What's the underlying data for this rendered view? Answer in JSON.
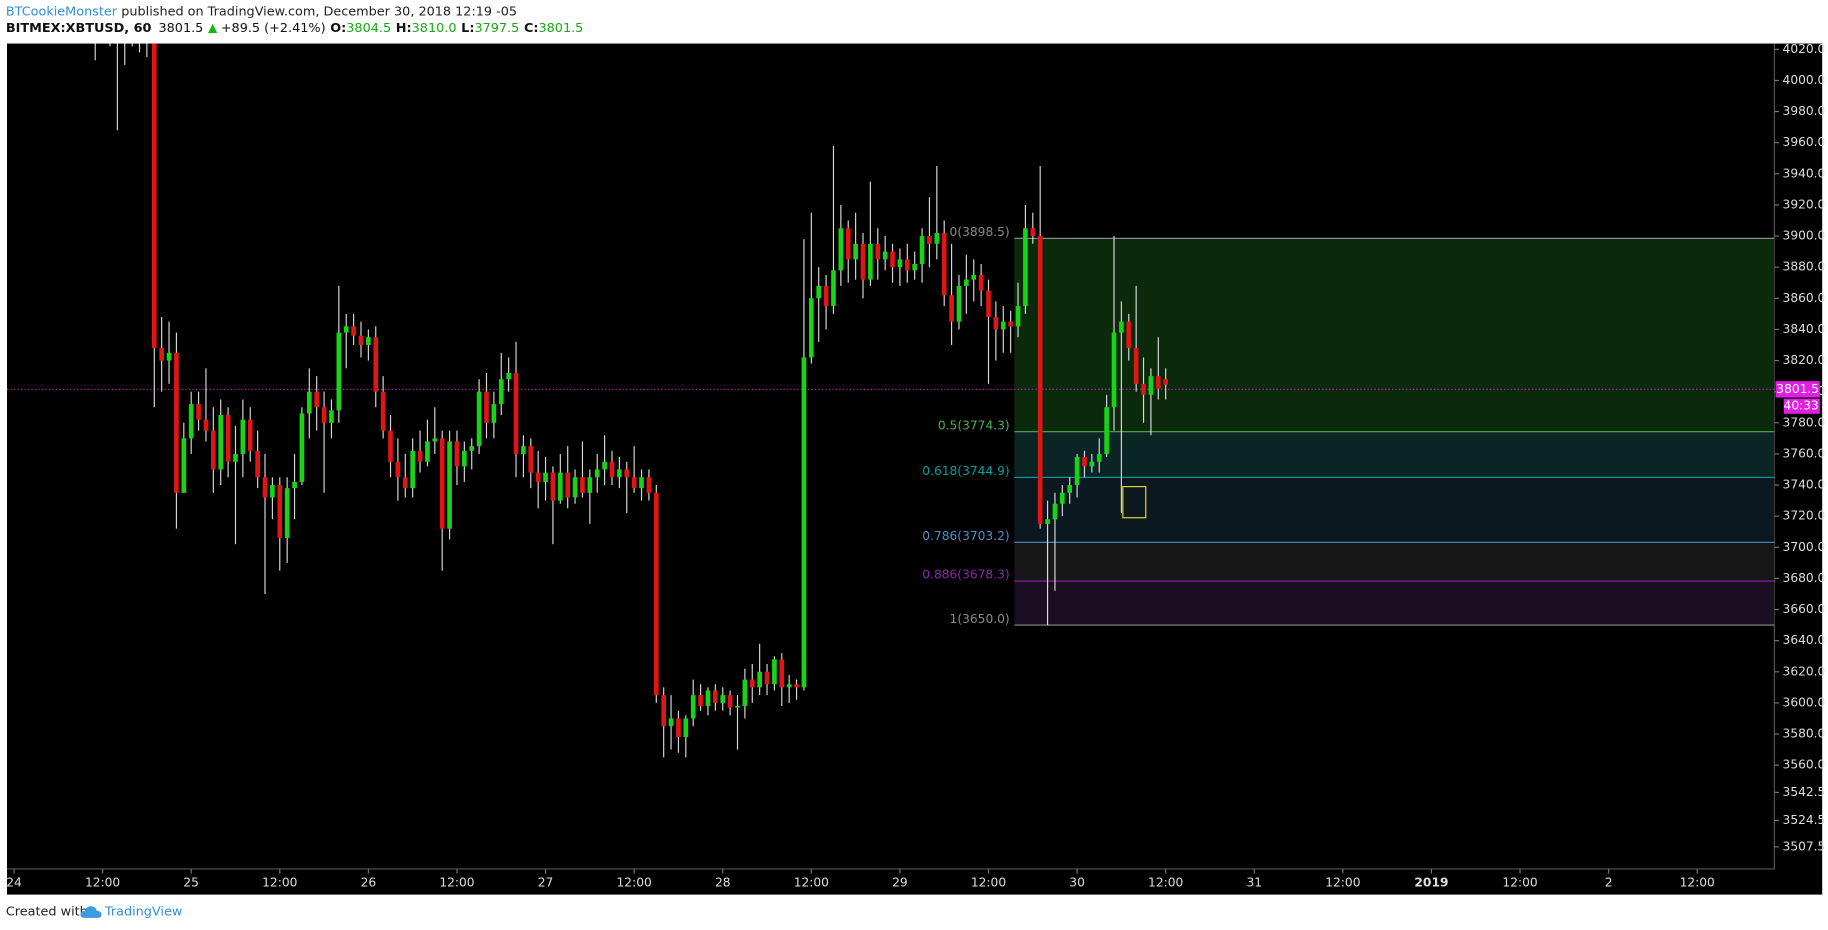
{
  "header": {
    "author": "BTCookieMonster",
    "published": "published on TradingView.com, December 30, 2018 12:19 -05",
    "symbol": "BITMEX:XBTUSD, 60",
    "last": "3801.5",
    "change": "+89.5 (+2.41%)",
    "ohlc": [
      {
        "label": "O:",
        "value": "3804.5"
      },
      {
        "label": "H:",
        "value": "3810.0"
      },
      {
        "label": "L:",
        "value": "3797.5"
      },
      {
        "label": "C:",
        "value": "3801.5"
      }
    ]
  },
  "footer": {
    "created": "Created with",
    "brand": "TradingView"
  },
  "chart_data": {
    "type": "candlestick",
    "up_color": "#18d418",
    "down_color": "#e01616",
    "wick_color": "#d8d8d8",
    "xlim": [
      -0.95,
      238.45
    ],
    "ylim": [
      3493.3,
      4023.7
    ],
    "xticks": [
      {
        "value": 0,
        "label": "24"
      },
      {
        "value": 12,
        "label": "12:00"
      },
      {
        "value": 24,
        "label": "25"
      },
      {
        "value": 36,
        "label": "12:00"
      },
      {
        "value": 48,
        "label": "26"
      },
      {
        "value": 60,
        "label": "12:00"
      },
      {
        "value": 72,
        "label": "27"
      },
      {
        "value": 84,
        "label": "12:00"
      },
      {
        "value": 96,
        "label": "28"
      },
      {
        "value": 108,
        "label": "12:00"
      },
      {
        "value": 120,
        "label": "29"
      },
      {
        "value": 132,
        "label": "12:00"
      },
      {
        "value": 144,
        "label": "30"
      },
      {
        "value": 156,
        "label": "12:00"
      },
      {
        "value": 168,
        "label": "31"
      },
      {
        "value": 180,
        "label": "12:00"
      },
      {
        "value": 192,
        "label": "2019"
      },
      {
        "value": 204,
        "label": "12:00"
      },
      {
        "value": 216,
        "label": "2"
      },
      {
        "value": 228,
        "label": "12:00"
      }
    ],
    "yticks": [
      {
        "value": 4020,
        "label": "4020.0"
      },
      {
        "value": 4000,
        "label": "4000.0"
      },
      {
        "value": 3980,
        "label": "3980.0"
      },
      {
        "value": 3960,
        "label": "3960.0"
      },
      {
        "value": 3940,
        "label": "3940.0"
      },
      {
        "value": 3920,
        "label": "3920.0"
      },
      {
        "value": 3900,
        "label": "3900.0"
      },
      {
        "value": 3880,
        "label": "3880.0"
      },
      {
        "value": 3860,
        "label": "3860.0"
      },
      {
        "value": 3840,
        "label": "3840.0"
      },
      {
        "value": 3820,
        "label": "3820.0"
      },
      {
        "value": 3800,
        "label": "3800.0"
      },
      {
        "value": 3780,
        "label": "3780.0"
      },
      {
        "value": 3760,
        "label": "3760.0"
      },
      {
        "value": 3740,
        "label": "3740.0"
      },
      {
        "value": 3720,
        "label": "3720.0"
      },
      {
        "value": 3700,
        "label": "3700.0"
      },
      {
        "value": 3680,
        "label": "3680.0"
      },
      {
        "value": 3660,
        "label": "3660.0"
      },
      {
        "value": 3640,
        "label": "3640.0"
      },
      {
        "value": 3620,
        "label": "3620.0"
      },
      {
        "value": 3600,
        "label": "3600.0"
      },
      {
        "value": 3580,
        "label": "3580.0"
      },
      {
        "value": 3560,
        "label": "3560.0"
      },
      3542.5,
      3524.5,
      3507.5
    ],
    "last_price": 3801.5,
    "last_color": "#e020e0",
    "countdown": "40:33",
    "fib": {
      "start": 135.5,
      "levels": [
        {
          "price": 3898.5,
          "label": "0(3898.5)",
          "color": "#8a8a8a"
        },
        {
          "price": 3774.3,
          "label": "0.5(3774.3)",
          "color": "#4caf50"
        },
        {
          "price": 3744.9,
          "label": "0.618(3744.9)",
          "color": "#00a0a0"
        },
        {
          "price": 3703.2,
          "label": "0.786(3703.2)",
          "color": "#4a90c8"
        },
        {
          "price": 3678.3,
          "label": "0.886(3678.3)",
          "color": "#8e24aa"
        },
        {
          "price": 3650.0,
          "label": "1(3650.0)",
          "color": "#8a8a8a"
        }
      ],
      "zone_colors": [
        "#0b2a0b",
        "#0b2424",
        "#0c1820",
        "#171717",
        "#1c0e22"
      ]
    },
    "highlight": {
      "x": [
        150.2,
        153.3
      ],
      "y": [
        3719,
        3739
      ],
      "color": "#e6d23a"
    },
    "x": [
      11,
      12,
      13,
      14,
      15,
      16,
      17,
      18,
      19,
      20,
      21,
      22,
      23,
      24,
      25,
      26,
      27,
      28,
      29,
      30,
      31,
      32,
      33,
      34,
      35,
      36,
      37,
      38,
      39,
      40,
      41,
      42,
      43,
      44,
      45,
      46,
      47,
      48,
      49,
      50,
      51,
      52,
      53,
      54,
      55,
      56,
      57,
      58,
      59,
      60,
      61,
      62,
      63,
      64,
      65,
      66,
      67,
      68,
      69,
      70,
      71,
      72,
      73,
      74,
      75,
      76,
      77,
      78,
      79,
      80,
      81,
      82,
      83,
      84,
      85,
      86,
      87,
      88,
      89,
      90,
      91,
      92,
      93,
      94,
      95,
      96,
      97,
      98,
      99,
      100,
      101,
      102,
      103,
      104,
      105,
      106,
      107,
      108,
      109,
      110,
      111,
      112,
      113,
      114,
      115,
      116,
      117,
      118,
      119,
      120,
      121,
      122,
      123,
      124,
      125,
      126,
      127,
      128,
      129,
      130,
      131,
      132,
      133,
      134,
      135,
      136,
      137,
      138,
      139,
      140,
      141,
      142,
      143,
      144,
      145,
      146,
      147,
      148,
      149,
      150,
      151,
      152,
      153,
      154,
      155,
      156
    ],
    "candles": [
      [
        4040,
        4060,
        4013,
        4035
      ],
      [
        4035,
        4050,
        4025,
        4030
      ],
      [
        4030,
        4045,
        4022,
        4032
      ],
      [
        4032,
        4040,
        3968,
        4028
      ],
      [
        4028,
        4040,
        4010,
        4025
      ],
      [
        4025,
        4040,
        4022,
        4030
      ],
      [
        4030,
        4038,
        4018,
        4026
      ],
      [
        4026,
        4035,
        4015,
        4030
      ],
      [
        4030,
        4035,
        3790,
        3828
      ],
      [
        3828,
        3848,
        3800,
        3820
      ],
      [
        3820,
        3845,
        3805,
        3825
      ],
      [
        3825,
        3838,
        3712,
        3735
      ],
      [
        3735,
        3780,
        3735,
        3770
      ],
      [
        3770,
        3800,
        3760,
        3792
      ],
      [
        3792,
        3800,
        3775,
        3782
      ],
      [
        3782,
        3815,
        3768,
        3775
      ],
      [
        3775,
        3790,
        3735,
        3750
      ],
      [
        3750,
        3795,
        3740,
        3785
      ],
      [
        3785,
        3790,
        3745,
        3755
      ],
      [
        3755,
        3778,
        3702,
        3760
      ],
      [
        3760,
        3795,
        3745,
        3782
      ],
      [
        3782,
        3790,
        3755,
        3762
      ],
      [
        3762,
        3775,
        3738,
        3745
      ],
      [
        3745,
        3760,
        3670,
        3732
      ],
      [
        3732,
        3745,
        3718,
        3740
      ],
      [
        3740,
        3745,
        3685,
        3706
      ],
      [
        3706,
        3745,
        3690,
        3738
      ],
      [
        3738,
        3760,
        3718,
        3742
      ],
      [
        3742,
        3790,
        3740,
        3786
      ],
      [
        3786,
        3815,
        3770,
        3800
      ],
      [
        3800,
        3810,
        3775,
        3790
      ],
      [
        3790,
        3800,
        3735,
        3780
      ],
      [
        3780,
        3795,
        3770,
        3788
      ],
      [
        3788,
        3868,
        3780,
        3838
      ],
      [
        3838,
        3850,
        3815,
        3842
      ],
      [
        3842,
        3850,
        3830,
        3836
      ],
      [
        3836,
        3845,
        3822,
        3830
      ],
      [
        3830,
        3840,
        3820,
        3835
      ],
      [
        3835,
        3842,
        3790,
        3800
      ],
      [
        3800,
        3810,
        3770,
        3775
      ],
      [
        3775,
        3785,
        3745,
        3755
      ],
      [
        3755,
        3770,
        3730,
        3745
      ],
      [
        3745,
        3760,
        3732,
        3738
      ],
      [
        3738,
        3770,
        3732,
        3762
      ],
      [
        3762,
        3775,
        3748,
        3755
      ],
      [
        3755,
        3782,
        3752,
        3768
      ],
      [
        3768,
        3790,
        3760,
        3770
      ],
      [
        3770,
        3775,
        3685,
        3712
      ],
      [
        3712,
        3775,
        3705,
        3768
      ],
      [
        3768,
        3775,
        3740,
        3752
      ],
      [
        3752,
        3768,
        3742,
        3762
      ],
      [
        3762,
        3770,
        3750,
        3765
      ],
      [
        3765,
        3808,
        3760,
        3800
      ],
      [
        3800,
        3812,
        3770,
        3780
      ],
      [
        3780,
        3800,
        3770,
        3792
      ],
      [
        3792,
        3825,
        3785,
        3808
      ],
      [
        3808,
        3822,
        3800,
        3812
      ],
      [
        3812,
        3832,
        3745,
        3760
      ],
      [
        3760,
        3772,
        3745,
        3765
      ],
      [
        3765,
        3770,
        3738,
        3748
      ],
      [
        3748,
        3762,
        3725,
        3742
      ],
      [
        3742,
        3758,
        3730,
        3748
      ],
      [
        3748,
        3752,
        3702,
        3730
      ],
      [
        3730,
        3760,
        3728,
        3748
      ],
      [
        3748,
        3765,
        3725,
        3732
      ],
      [
        3732,
        3750,
        3728,
        3745
      ],
      [
        3745,
        3768,
        3732,
        3735
      ],
      [
        3735,
        3750,
        3715,
        3745
      ],
      [
        3745,
        3760,
        3735,
        3750
      ],
      [
        3750,
        3772,
        3740,
        3755
      ],
      [
        3755,
        3762,
        3740,
        3745
      ],
      [
        3745,
        3758,
        3738,
        3750
      ],
      [
        3750,
        3755,
        3722,
        3745
      ],
      [
        3745,
        3765,
        3735,
        3738
      ],
      [
        3738,
        3750,
        3730,
        3745
      ],
      [
        3745,
        3750,
        3730,
        3735
      ],
      [
        3735,
        3740,
        3600,
        3605
      ],
      [
        3605,
        3610,
        3565,
        3585
      ],
      [
        3585,
        3605,
        3570,
        3590
      ],
      [
        3590,
        3595,
        3568,
        3578
      ],
      [
        3578,
        3592,
        3565,
        3590
      ],
      [
        3590,
        3615,
        3585,
        3605
      ],
      [
        3605,
        3612,
        3595,
        3598
      ],
      [
        3598,
        3610,
        3592,
        3608
      ],
      [
        3608,
        3612,
        3595,
        3600
      ],
      [
        3600,
        3610,
        3595,
        3605
      ],
      [
        3605,
        3608,
        3592,
        3597
      ],
      [
        3597,
        3605,
        3570,
        3598
      ],
      [
        3598,
        3622,
        3590,
        3615
      ],
      [
        3615,
        3625,
        3600,
        3610
      ],
      [
        3610,
        3638,
        3605,
        3620
      ],
      [
        3620,
        3625,
        3605,
        3612
      ],
      [
        3612,
        3630,
        3608,
        3628
      ],
      [
        3628,
        3632,
        3598,
        3610
      ],
      [
        3610,
        3618,
        3600,
        3612
      ],
      [
        3612,
        3615,
        3602,
        3610
      ],
      [
        3610,
        3898,
        3608,
        3822
      ],
      [
        3822,
        3915,
        3818,
        3860
      ],
      [
        3860,
        3880,
        3832,
        3868
      ],
      [
        3868,
        3875,
        3840,
        3855
      ],
      [
        3855,
        3958,
        3850,
        3878
      ],
      [
        3878,
        3920,
        3868,
        3905
      ],
      [
        3905,
        3910,
        3870,
        3885
      ],
      [
        3885,
        3915,
        3872,
        3895
      ],
      [
        3895,
        3902,
        3860,
        3872
      ],
      [
        3872,
        3935,
        3868,
        3895
      ],
      [
        3895,
        3905,
        3872,
        3885
      ],
      [
        3885,
        3900,
        3878,
        3890
      ],
      [
        3890,
        3895,
        3870,
        3880
      ],
      [
        3880,
        3892,
        3868,
        3885
      ],
      [
        3885,
        3895,
        3870,
        3878
      ],
      [
        3878,
        3890,
        3872,
        3882
      ],
      [
        3882,
        3905,
        3870,
        3900
      ],
      [
        3900,
        3925,
        3880,
        3895
      ],
      [
        3895,
        3945,
        3885,
        3902
      ],
      [
        3902,
        3910,
        3855,
        3862
      ],
      [
        3862,
        3895,
        3830,
        3845
      ],
      [
        3845,
        3875,
        3840,
        3868
      ],
      [
        3868,
        3888,
        3850,
        3872
      ],
      [
        3872,
        3885,
        3858,
        3875
      ],
      [
        3875,
        3882,
        3855,
        3865
      ],
      [
        3865,
        3872,
        3805,
        3848
      ],
      [
        3848,
        3858,
        3820,
        3840
      ],
      [
        3840,
        3855,
        3825,
        3845
      ],
      [
        3845,
        3852,
        3825,
        3842
      ],
      [
        3842,
        3870,
        3835,
        3855
      ],
      [
        3855,
        3920,
        3850,
        3905
      ],
      [
        3905,
        3915,
        3895,
        3900
      ],
      [
        3900,
        3945,
        3712,
        3715
      ],
      [
        3715,
        3730,
        3650,
        3718
      ],
      [
        3718,
        3735,
        3672,
        3728
      ],
      [
        3728,
        3740,
        3720,
        3735
      ],
      [
        3735,
        3745,
        3728,
        3740
      ],
      [
        3740,
        3760,
        3732,
        3758
      ],
      [
        3758,
        3762,
        3745,
        3752
      ],
      [
        3752,
        3760,
        3748,
        3755
      ],
      [
        3755,
        3770,
        3748,
        3760
      ],
      [
        3760,
        3798,
        3758,
        3790
      ],
      [
        3790,
        3900,
        3775,
        3838
      ],
      [
        3838,
        3858,
        3722,
        3845
      ],
      [
        3845,
        3850,
        3820,
        3828
      ],
      [
        3828,
        3868,
        3800,
        3805
      ],
      [
        3805,
        3822,
        3780,
        3798
      ],
      [
        3798,
        3815,
        3772,
        3810
      ],
      [
        3810,
        3835,
        3795,
        3802
      ],
      [
        3808,
        3815,
        3795,
        3804.5
      ],
      [
        3804.5,
        3810,
        3797.5,
        3801.5
      ]
    ]
  }
}
